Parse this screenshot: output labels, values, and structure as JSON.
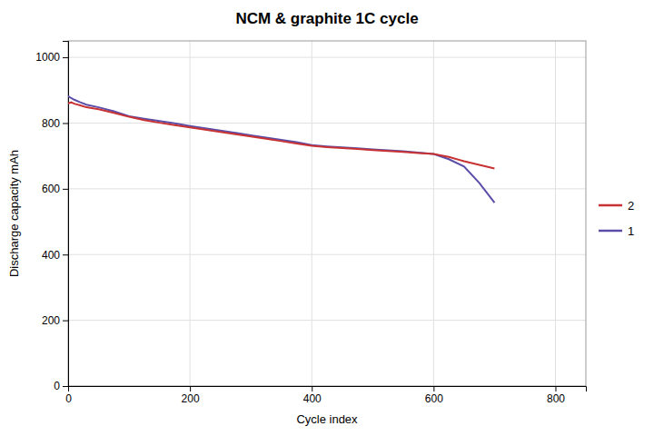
{
  "chart_data": {
    "type": "line",
    "title": "NCM & graphite 1C cycle",
    "x_label": "Cycle index",
    "y_label": "Discharge capacity mAh",
    "x": [
      0,
      5,
      10,
      20,
      30,
      50,
      75,
      100,
      125,
      150,
      175,
      200,
      225,
      250,
      275,
      300,
      325,
      350,
      375,
      400,
      425,
      450,
      475,
      500,
      525,
      550,
      575,
      600,
      625,
      650,
      675,
      700
    ],
    "series": [
      {
        "name": "1",
        "color": "#5B4EA8",
        "values": [
          882,
          876,
          871,
          863,
          856,
          848,
          836,
          821,
          813,
          806,
          799,
          791,
          784,
          777,
          770,
          763,
          756,
          749,
          742,
          733,
          729,
          726,
          723,
          720,
          717,
          714,
          710,
          706,
          690,
          668,
          618,
          558
        ]
      },
      {
        "name": "2",
        "color": "#C83232",
        "values": [
          860,
          863,
          859,
          854,
          848,
          842,
          831,
          819,
          809,
          801,
          794,
          787,
          780,
          773,
          766,
          759,
          752,
          745,
          738,
          731,
          727,
          724,
          721,
          718,
          715,
          712,
          709,
          706,
          697,
          684,
          673,
          662
        ]
      }
    ],
    "xlim": [
      0,
      850
    ],
    "xticks": [
      0,
      200,
      400,
      600,
      800
    ],
    "ylim": [
      0,
      1050
    ],
    "yticks": [
      0,
      200,
      400,
      600,
      800,
      1000
    ],
    "grid": true,
    "legend": "right"
  }
}
